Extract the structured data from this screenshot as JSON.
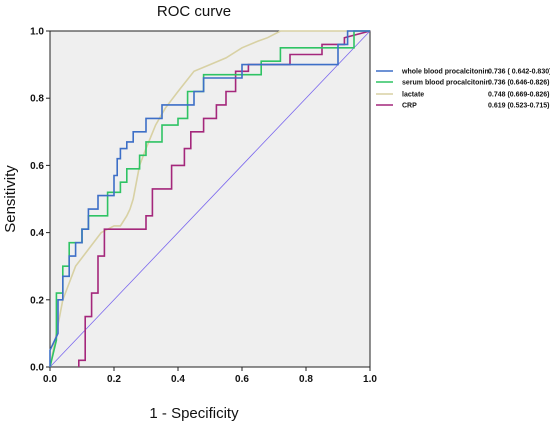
{
  "chart_data": {
    "type": "line",
    "title": "ROC curve",
    "xlabel": "1 - Specificity",
    "ylabel": "Sensitivity",
    "xlim": [
      0,
      1
    ],
    "ylim": [
      0,
      1
    ],
    "xticks": [
      "0.0",
      "0.2",
      "0.4",
      "0.6",
      "0.8",
      "1.0"
    ],
    "yticks": [
      "0.0",
      "0.2",
      "0.4",
      "0.6",
      "0.8",
      "1.0"
    ],
    "grid": false,
    "legend_position": "right",
    "plot_background": "#efefef",
    "reference_line": {
      "x": [
        0,
        1
      ],
      "y": [
        0,
        1
      ],
      "color": "#7b68ee"
    },
    "series": [
      {
        "name": "whole blood procalcitonin",
        "value_label": "0.736 ( 0.642-0.830)",
        "color": "#3d6fc7",
        "x": [
          0.0,
          0.0,
          0.025,
          0.025,
          0.04,
          0.04,
          0.06,
          0.06,
          0.08,
          0.08,
          0.1,
          0.1,
          0.12,
          0.12,
          0.15,
          0.15,
          0.2,
          0.2,
          0.21,
          0.21,
          0.22,
          0.22,
          0.24,
          0.24,
          0.26,
          0.26,
          0.3,
          0.3,
          0.33,
          0.33,
          0.35,
          0.35,
          0.45,
          0.45,
          0.48,
          0.48,
          0.6,
          0.6,
          0.9,
          0.9,
          0.93,
          0.93,
          1.0
        ],
        "y": [
          0.0,
          0.05,
          0.1,
          0.2,
          0.2,
          0.27,
          0.27,
          0.33,
          0.33,
          0.37,
          0.37,
          0.41,
          0.41,
          0.47,
          0.47,
          0.51,
          0.51,
          0.57,
          0.57,
          0.62,
          0.62,
          0.65,
          0.65,
          0.67,
          0.67,
          0.7,
          0.7,
          0.74,
          0.74,
          0.74,
          0.74,
          0.78,
          0.78,
          0.82,
          0.82,
          0.86,
          0.86,
          0.9,
          0.9,
          0.96,
          0.96,
          1.0,
          1.0
        ]
      },
      {
        "name": "serum blood procalcitonin",
        "value_label": "0.736 (0.646-0.826)",
        "color": "#2fc364",
        "x": [
          0.0,
          0.02,
          0.02,
          0.04,
          0.04,
          0.06,
          0.06,
          0.1,
          0.1,
          0.12,
          0.12,
          0.18,
          0.18,
          0.22,
          0.22,
          0.24,
          0.24,
          0.28,
          0.28,
          0.3,
          0.3,
          0.35,
          0.35,
          0.4,
          0.4,
          0.43,
          0.43,
          0.48,
          0.48,
          0.66,
          0.66,
          0.72,
          0.72,
          0.95,
          0.95,
          1.0
        ],
        "y": [
          0.0,
          0.08,
          0.22,
          0.22,
          0.3,
          0.3,
          0.37,
          0.37,
          0.41,
          0.41,
          0.45,
          0.45,
          0.52,
          0.52,
          0.55,
          0.55,
          0.59,
          0.59,
          0.63,
          0.63,
          0.67,
          0.67,
          0.72,
          0.72,
          0.74,
          0.74,
          0.82,
          0.82,
          0.87,
          0.87,
          0.91,
          0.91,
          0.95,
          0.95,
          1.0,
          1.0
        ]
      },
      {
        "name": "lactate",
        "value_label": "0.748 (0.669-0.826)",
        "color": "#d8d1a4",
        "x": [
          0.0,
          0.02,
          0.04,
          0.06,
          0.08,
          0.12,
          0.16,
          0.2,
          0.22,
          0.24,
          0.25,
          0.26,
          0.27,
          0.28,
          0.3,
          0.33,
          0.36,
          0.4,
          0.45,
          0.5,
          0.55,
          0.6,
          0.65,
          0.68,
          0.72,
          0.75,
          1.0
        ],
        "y": [
          0.0,
          0.1,
          0.2,
          0.25,
          0.3,
          0.35,
          0.4,
          0.42,
          0.42,
          0.45,
          0.47,
          0.5,
          0.55,
          0.6,
          0.65,
          0.72,
          0.77,
          0.82,
          0.88,
          0.9,
          0.92,
          0.95,
          0.97,
          0.98,
          1.0,
          1.0,
          1.0
        ]
      },
      {
        "name": "CRP",
        "value_label": "0.619 (0.523-0.715)",
        "color": "#a4277b",
        "x": [
          0.09,
          0.09,
          0.11,
          0.11,
          0.13,
          0.13,
          0.15,
          0.15,
          0.17,
          0.17,
          0.3,
          0.3,
          0.32,
          0.32,
          0.38,
          0.38,
          0.42,
          0.42,
          0.44,
          0.44,
          0.48,
          0.48,
          0.52,
          0.52,
          0.55,
          0.55,
          0.58,
          0.58,
          0.62,
          0.62,
          0.75,
          0.75,
          0.85,
          0.85,
          0.92,
          0.92,
          1.0
        ],
        "y": [
          0.0,
          0.02,
          0.02,
          0.15,
          0.15,
          0.22,
          0.22,
          0.33,
          0.33,
          0.41,
          0.41,
          0.45,
          0.45,
          0.53,
          0.53,
          0.6,
          0.6,
          0.65,
          0.65,
          0.7,
          0.7,
          0.74,
          0.74,
          0.78,
          0.78,
          0.82,
          0.82,
          0.88,
          0.88,
          0.9,
          0.9,
          0.93,
          0.93,
          0.96,
          0.96,
          0.98,
          1.0
        ]
      }
    ]
  }
}
